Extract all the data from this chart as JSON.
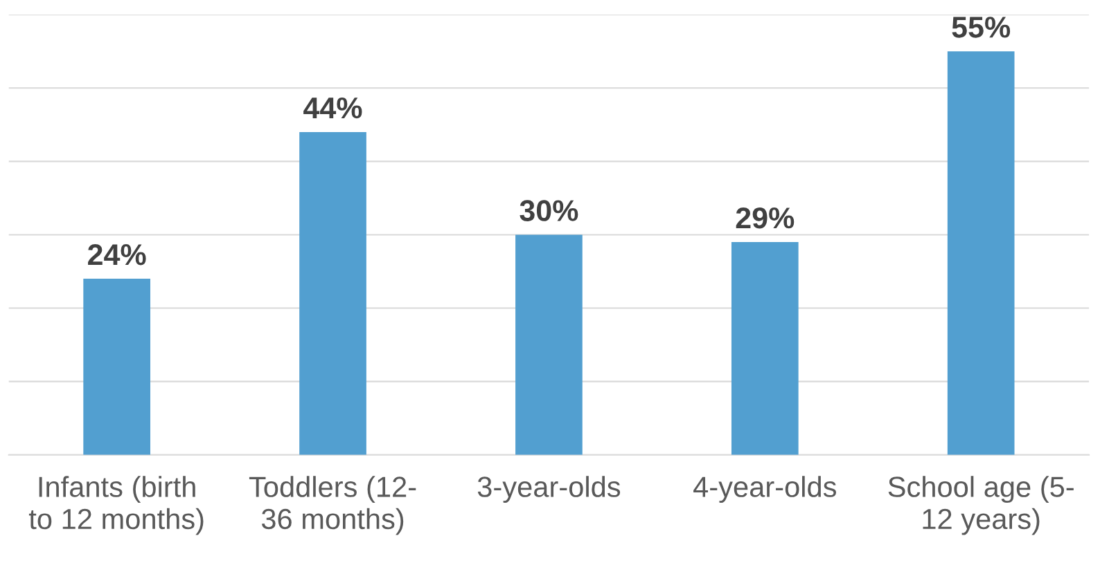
{
  "chart_data": {
    "type": "bar",
    "categories": [
      "Infants (birth\nto 12 months)",
      "Toddlers (12-\n36 months)",
      "3-year-olds",
      "4-year-olds",
      "School age (5-\n12 years)"
    ],
    "values": [
      24,
      44,
      30,
      29,
      55
    ],
    "value_labels": [
      "24%",
      "44%",
      "30%",
      "29%",
      "55%"
    ],
    "color": "#529fd0",
    "ylim": [
      0,
      60
    ],
    "yticks": [
      {
        "value": 0,
        "label": null
      },
      {
        "value": 10,
        "label": null
      },
      {
        "value": 20,
        "label": null
      },
      {
        "value": 30,
        "label": null
      },
      {
        "value": 40,
        "label": null
      },
      {
        "value": 50,
        "label": null
      },
      {
        "value": 60,
        "label": null
      }
    ],
    "grid": "y",
    "tick_labels": "x"
  }
}
